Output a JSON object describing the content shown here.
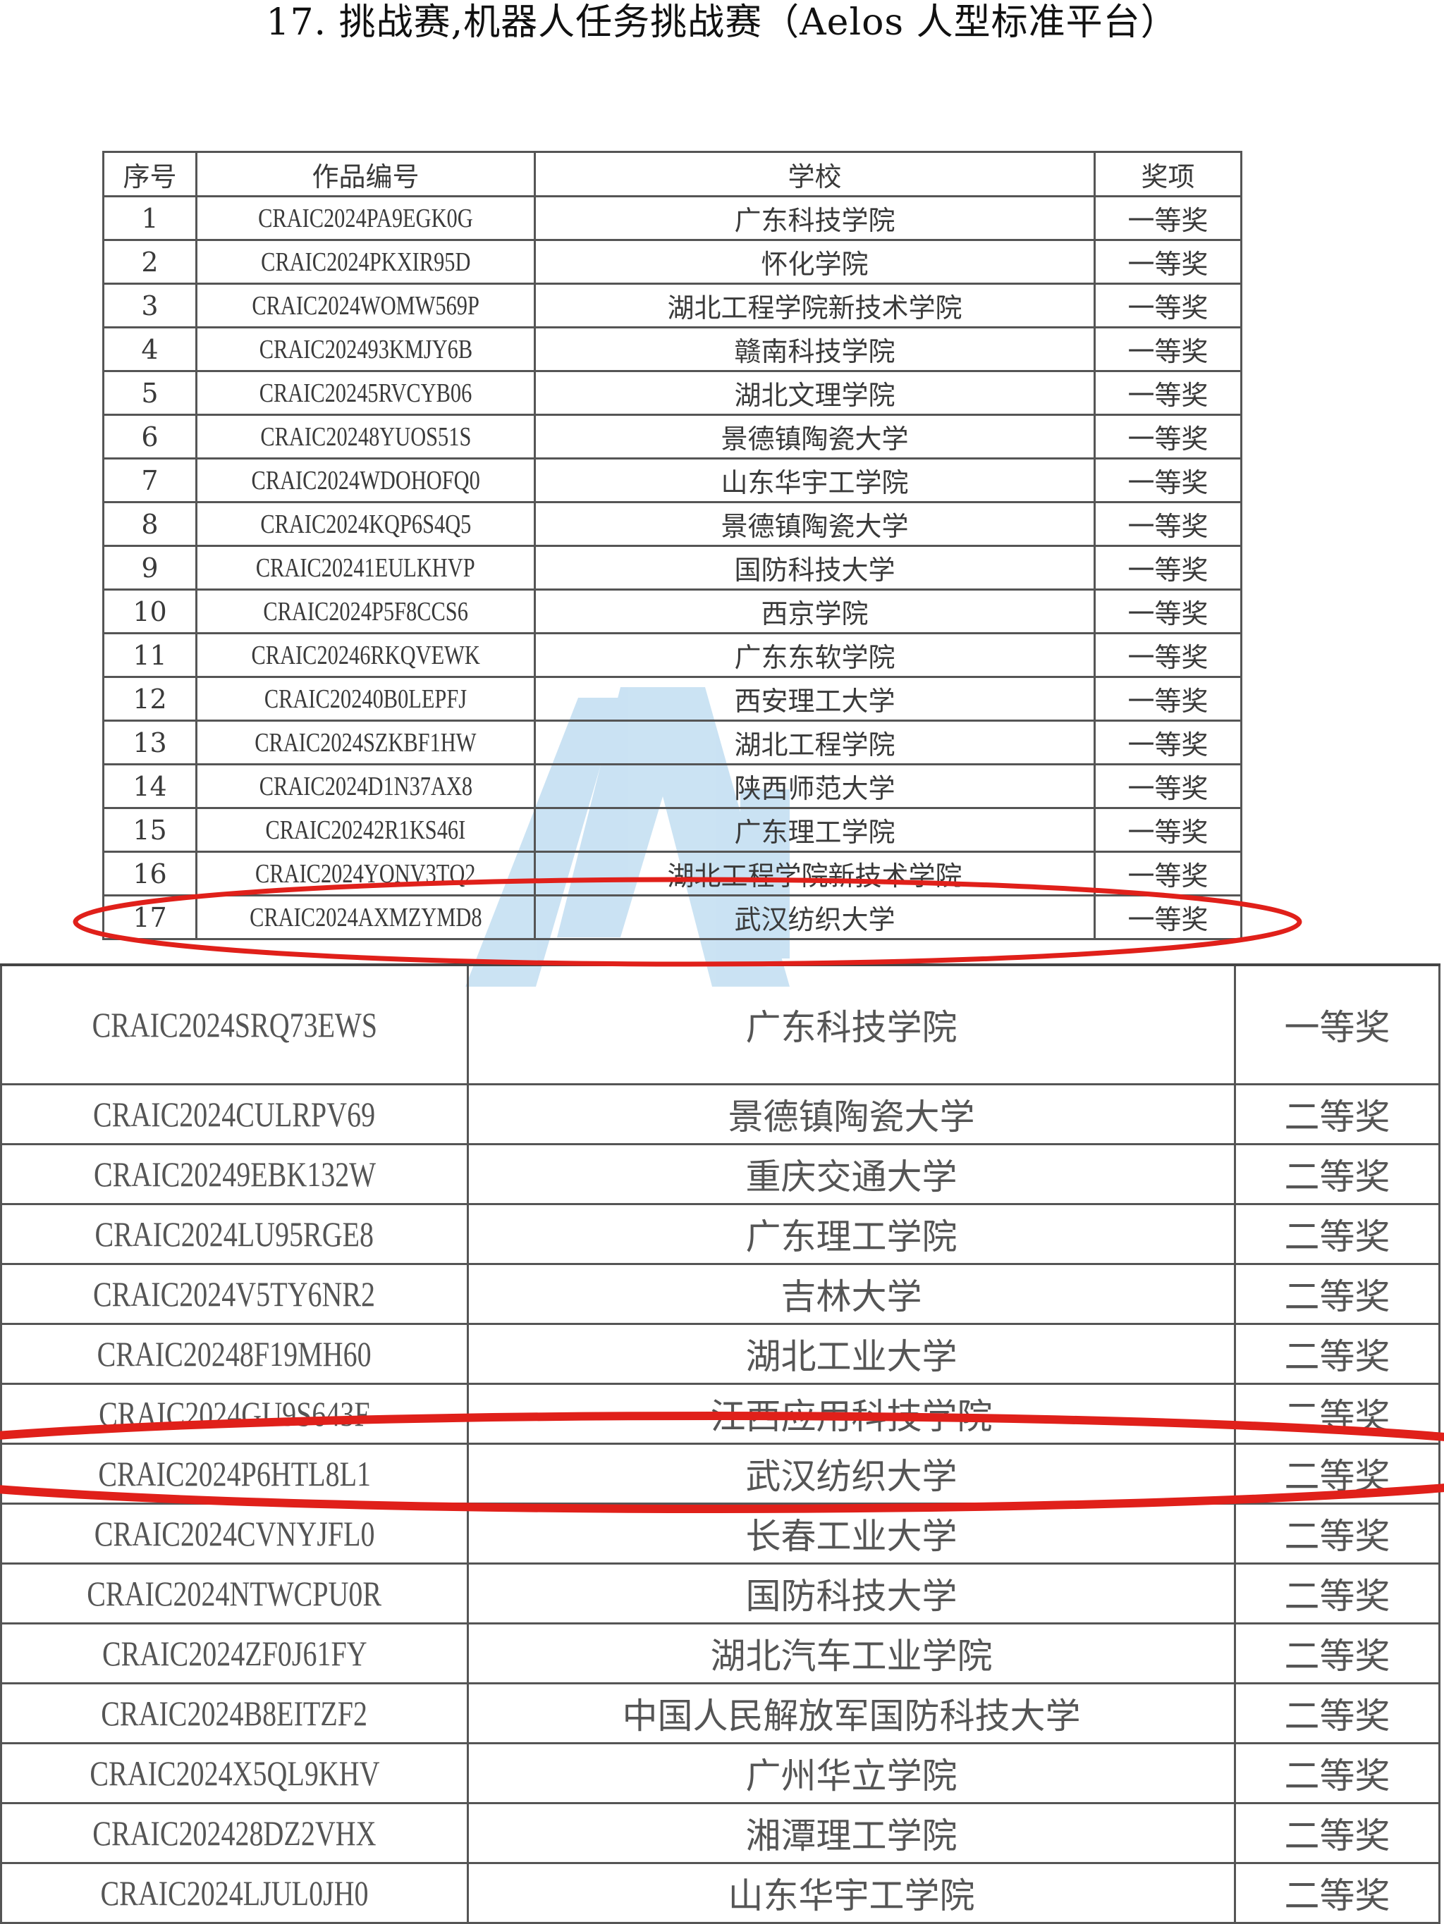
{
  "title": "17. 挑战赛,机器人任务挑战赛（Aelos 人型标准平台）",
  "table_top": {
    "headers": [
      "序号",
      "作品编号",
      "学校",
      "奖项"
    ],
    "rows": [
      [
        "1",
        "CRAIC2024PA9EGK0G",
        "广东科技学院",
        "一等奖"
      ],
      [
        "2",
        "CRAIC2024PKXIR95D",
        "怀化学院",
        "一等奖"
      ],
      [
        "3",
        "CRAIC2024WOMW569P",
        "湖北工程学院新技术学院",
        "一等奖"
      ],
      [
        "4",
        "CRAIC202493KMJY6B",
        "赣南科技学院",
        "一等奖"
      ],
      [
        "5",
        "CRAIC20245RVCYB06",
        "湖北文理学院",
        "一等奖"
      ],
      [
        "6",
        "CRAIC20248YUOS51S",
        "景德镇陶瓷大学",
        "一等奖"
      ],
      [
        "7",
        "CRAIC2024WDOHOFQ0",
        "山东华宇工学院",
        "一等奖"
      ],
      [
        "8",
        "CRAIC2024KQP6S4Q5",
        "景德镇陶瓷大学",
        "一等奖"
      ],
      [
        "9",
        "CRAIC20241EULKHVP",
        "国防科技大学",
        "一等奖"
      ],
      [
        "10",
        "CRAIC2024P5F8CCS6",
        "西京学院",
        "一等奖"
      ],
      [
        "11",
        "CRAIC20246RKQVEWK",
        "广东东软学院",
        "一等奖"
      ],
      [
        "12",
        "CRAIC20240B0LEPFJ",
        "西安理工大学",
        "一等奖"
      ],
      [
        "13",
        "CRAIC2024SZKBF1HW",
        "湖北工程学院",
        "一等奖"
      ],
      [
        "14",
        "CRAIC2024D1N37AX8",
        "陕西师范大学",
        "一等奖"
      ],
      [
        "15",
        "CRAIC20242R1KS46I",
        "广东理工学院",
        "一等奖"
      ],
      [
        "16",
        "CRAIC2024YONV3TQ2",
        "湖北工程学院新技术学院",
        "一等奖"
      ],
      [
        "17",
        "CRAIC2024AXMZYMD8",
        "武汉纺织大学",
        "一等奖"
      ]
    ]
  },
  "table_bottom": {
    "rows": [
      [
        "CRAIC2024SRQ73EWS",
        "广东科技学院",
        "一等奖"
      ],
      [
        "CRAIC2024CULRPV69",
        "景德镇陶瓷大学",
        "二等奖"
      ],
      [
        "CRAIC20249EBK132W",
        "重庆交通大学",
        "二等奖"
      ],
      [
        "CRAIC2024LU95RGE8",
        "广东理工学院",
        "二等奖"
      ],
      [
        "CRAIC2024V5TY6NR2",
        "吉林大学",
        "二等奖"
      ],
      [
        "CRAIC20248F19MH60",
        "湖北工业大学",
        "二等奖"
      ],
      [
        "CRAIC2024GU9S643F",
        "江西应用科技学院",
        "二等奖"
      ],
      [
        "CRAIC2024P6HTL8L1",
        "武汉纺织大学",
        "二等奖"
      ],
      [
        "CRAIC2024CVNYJFL0",
        "长春工业大学",
        "二等奖"
      ],
      [
        "CRAIC2024NTWCPU0R",
        "国防科技大学",
        "二等奖"
      ],
      [
        "CRAIC2024ZF0J61FY",
        "湖北汽车工业学院",
        "二等奖"
      ],
      [
        "CRAIC2024B8EITZF2",
        "中国人民解放军国防科技大学",
        "二等奖"
      ],
      [
        "CRAIC2024X5QL9KHV",
        "广州华立学院",
        "二等奖"
      ],
      [
        "CRAIC202428DZ2VHX",
        "湘潭理工学院",
        "二等奖"
      ],
      [
        "CRAIC2024LJUL0JH0",
        "山东华宇工学院",
        "二等奖"
      ]
    ]
  },
  "colors": {
    "highlight_ellipse": "#e0201a",
    "watermark": "#b9d9ef"
  },
  "icons": {
    "watermark": "blue-logo-watermark"
  }
}
